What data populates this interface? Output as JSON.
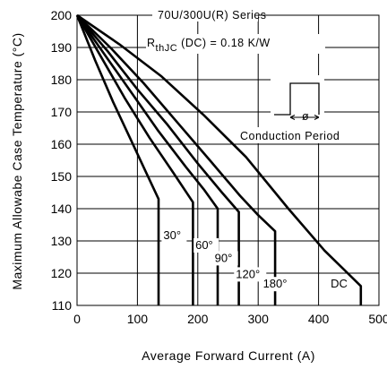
{
  "chart_data": {
    "type": "line",
    "xlabel": "Average Forward Current (A)",
    "ylabel": "Maximum Allowabe Case Temperature (°C)",
    "xlim": [
      0,
      500
    ],
    "ylim": [
      110,
      200
    ],
    "x_ticks": [
      0,
      100,
      200,
      300,
      400,
      500
    ],
    "y_ticks": [
      110,
      120,
      130,
      140,
      150,
      160,
      170,
      180,
      190,
      200
    ],
    "grid": true,
    "annotations": {
      "series_title": "70U/300U(R) Series",
      "rth_prefix": "R",
      "rth_sub": "thJC",
      "rth_rest": "(DC) = 0.18 K/W",
      "inset_label": "Conduction Period",
      "inset_symbol": "ø"
    },
    "series": [
      {
        "name": "30°",
        "label_at": [
          143,
          130.5
        ],
        "points": [
          [
            0,
            200
          ],
          [
            30,
            186
          ],
          [
            60,
            173
          ],
          [
            90,
            161
          ],
          [
            115,
            151
          ],
          [
            135,
            143
          ],
          [
            135,
            110
          ]
        ]
      },
      {
        "name": "60°",
        "label_at": [
          196,
          127.5
        ],
        "points": [
          [
            0,
            200
          ],
          [
            40,
            187
          ],
          [
            80,
            174
          ],
          [
            120,
            162
          ],
          [
            160,
            151
          ],
          [
            192,
            142
          ],
          [
            192,
            110
          ]
        ]
      },
      {
        "name": "90°",
        "label_at": [
          228,
          123.5
        ],
        "points": [
          [
            0,
            200
          ],
          [
            45,
            188
          ],
          [
            90,
            176
          ],
          [
            135,
            164
          ],
          [
            180,
            153
          ],
          [
            210,
            146
          ],
          [
            233,
            140
          ],
          [
            233,
            110
          ]
        ]
      },
      {
        "name": "120°",
        "label_at": [
          263,
          118.5
        ],
        "points": [
          [
            0,
            200
          ],
          [
            50,
            189
          ],
          [
            100,
            177
          ],
          [
            150,
            166
          ],
          [
            200,
            154
          ],
          [
            240,
            145
          ],
          [
            268,
            139
          ],
          [
            268,
            110
          ]
        ]
      },
      {
        "name": "180°",
        "label_at": [
          308,
          115.5
        ],
        "points": [
          [
            0,
            200
          ],
          [
            55,
            190
          ],
          [
            110,
            179
          ],
          [
            165,
            167
          ],
          [
            220,
            155
          ],
          [
            270,
            144
          ],
          [
            300,
            138
          ],
          [
            328,
            133
          ],
          [
            328,
            110
          ]
        ]
      },
      {
        "name": "DC",
        "label_at": [
          420,
          115.5
        ],
        "points": [
          [
            0,
            200
          ],
          [
            70,
            191
          ],
          [
            140,
            181
          ],
          [
            210,
            169
          ],
          [
            280,
            156
          ],
          [
            350,
            140
          ],
          [
            410,
            127
          ],
          [
            470,
            116
          ],
          [
            470,
            110
          ]
        ]
      }
    ]
  }
}
